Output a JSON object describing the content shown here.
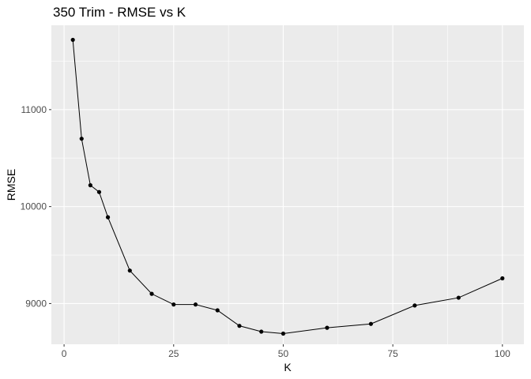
{
  "chart_data": {
    "type": "line",
    "title": "350 Trim - RMSE vs K",
    "xlabel": "K",
    "ylabel": "RMSE",
    "xlim": [
      -2.9,
      104.9
    ],
    "ylim": [
      8580,
      11870
    ],
    "x_ticks": [
      0,
      25,
      50,
      75,
      100
    ],
    "y_ticks": [
      9000,
      10000,
      11000
    ],
    "x_tick_labels": [
      "0",
      "25",
      "50",
      "75",
      "100"
    ],
    "y_tick_labels": [
      "9000",
      "10000",
      "11000"
    ],
    "grid": true,
    "legend": "none",
    "background_color": "#ebebeb",
    "grid_color": "#ffffff",
    "line_color": "#000000",
    "series": [
      {
        "x": [
          2,
          4,
          6,
          8,
          10,
          15,
          20,
          25,
          30,
          35,
          40,
          45,
          50,
          60,
          70,
          80,
          90,
          100
        ],
        "values": [
          11720,
          10700,
          10220,
          10150,
          9890,
          9340,
          9100,
          8990,
          8990,
          8930,
          8770,
          8710,
          8690,
          8750,
          8790,
          8980,
          9060,
          9260
        ]
      }
    ]
  }
}
